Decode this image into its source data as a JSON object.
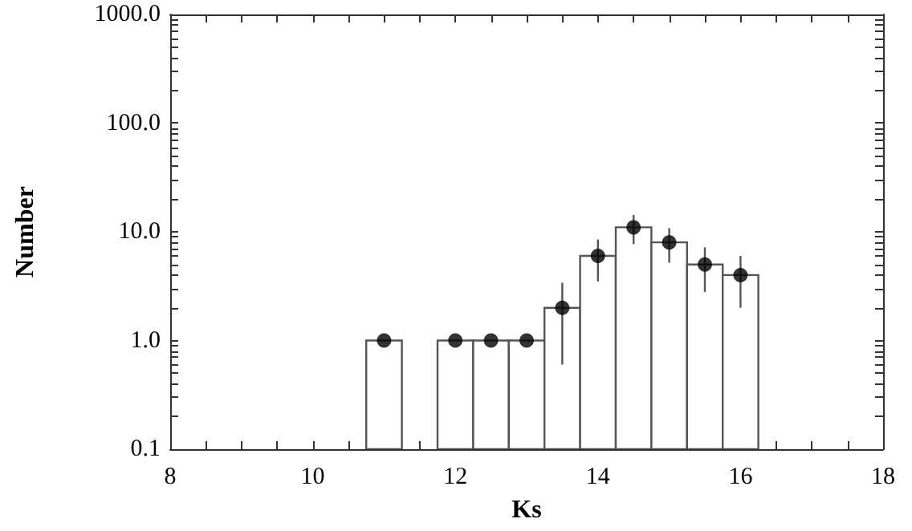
{
  "chart_data": {
    "type": "histogram",
    "xlabel": "Ks",
    "ylabel": "Number",
    "log": "y",
    "grid": false,
    "marker": "circle",
    "xlim": [
      8,
      18
    ],
    "xticks": [
      8,
      10,
      12,
      14,
      16,
      18
    ],
    "ylim": [
      0.1,
      1000
    ],
    "yticks": [
      {
        "value": 0.1,
        "label": "0.1"
      },
      {
        "value": 1,
        "label": "1.0"
      },
      {
        "value": 10,
        "label": "10.0"
      },
      {
        "value": 100,
        "label": "100.0"
      },
      {
        "value": 1000,
        "label": "1000.0"
      }
    ],
    "series": [
      {
        "type": "histogram",
        "color": "#555555",
        "bins": [
          10.75,
          11.25,
          11.75,
          12.25,
          12.75,
          13.25,
          13.75,
          14.25,
          14.75,
          15.25,
          15.75,
          16.25
        ],
        "values": [
          1,
          null,
          1,
          1,
          1,
          2,
          6,
          11,
          8,
          5,
          4
        ]
      },
      {
        "type": "scatter",
        "color": "#000000",
        "x": [
          11,
          12,
          12.5,
          13,
          13.5,
          14,
          14.5,
          15,
          15.5,
          16
        ],
        "values": [
          1,
          1,
          1,
          1,
          2,
          6,
          11,
          8,
          5,
          4
        ],
        "errors": [
          null,
          null,
          null,
          null,
          [
            0.6,
            3.4
          ],
          [
            3.5,
            8.5
          ],
          [
            7.7,
            14.3
          ],
          [
            5.2,
            10.8
          ],
          [
            2.8,
            7.2
          ],
          [
            2,
            6
          ]
        ]
      }
    ]
  }
}
